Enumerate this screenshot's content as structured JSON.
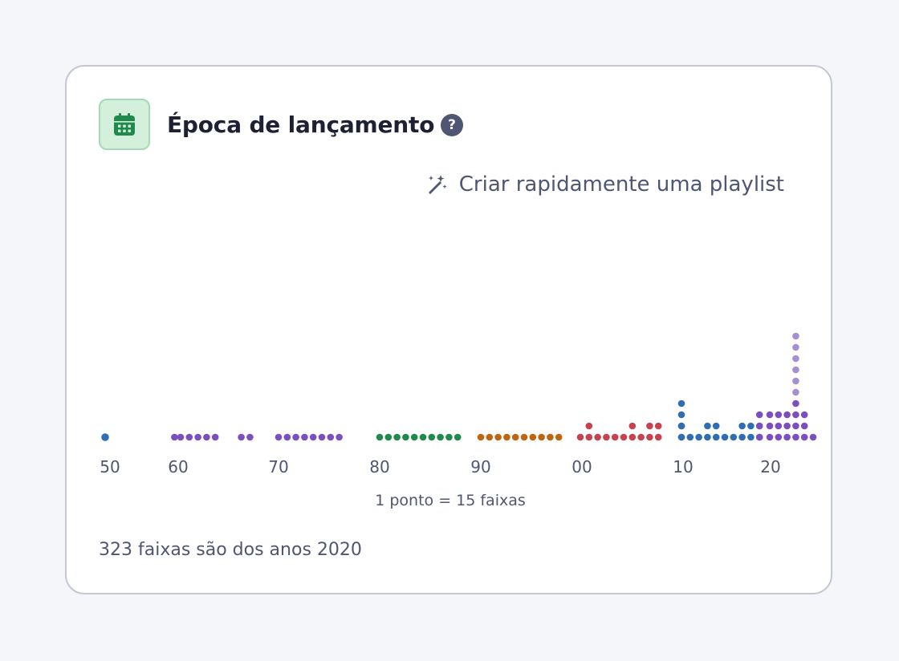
{
  "card": {
    "title": "Época de lançamento",
    "help_icon": "question-circle-icon",
    "header_icon": "calendar-icon",
    "quick_playlist_label": "Criar rapidamente uma playlist",
    "quick_playlist_icon": "magic-wand-icon",
    "legend": "1 ponto = 15 faixas",
    "summary": "323 faixas são dos anos 2020"
  },
  "colors": {
    "header_icon_bg": "#d4efdc",
    "header_icon_fg": "#1f8a4c",
    "help_icon": "#4f5673",
    "text_muted": "#4f5673"
  },
  "chart_data": {
    "type": "scatter",
    "title": "",
    "xlabel": "",
    "ylabel": "",
    "dot_value": 15,
    "x_ticks": [
      "50",
      "60",
      "70",
      "80",
      "90",
      "00",
      "10",
      "20"
    ],
    "decades": [
      {
        "label": "50",
        "color": "#2f6db5",
        "counts": {
          "1950": 1
        }
      },
      {
        "label": "60",
        "color": "#7b4fbf",
        "counts": {
          "1958": 1,
          "1960": 1,
          "1961": 1,
          "1962": 1,
          "1963": 1,
          "1964": 1
        }
      },
      {
        "label": "70",
        "color": "#7b4fbf",
        "counts": {
          "1967": 1,
          "1968": 1,
          "1970": 1,
          "1971": 1,
          "1972": 1,
          "1973": 1,
          "1974": 1,
          "1975": 1,
          "1976": 1,
          "1977": 1
        }
      },
      {
        "label": "80",
        "color": "#1f8a4c",
        "counts": {
          "1980": 1,
          "1981": 1,
          "1982": 1,
          "1983": 1,
          "1984": 1,
          "1985": 1,
          "1986": 1,
          "1987": 1,
          "1988": 1,
          "1989": 1
        }
      },
      {
        "label": "90",
        "color": "#c0650f",
        "counts": {
          "1990": 1,
          "1991": 1,
          "1992": 1,
          "1993": 1,
          "1994": 1,
          "1995": 1,
          "1996": 1,
          "1997": 1,
          "1998": 1,
          "1999": 1
        }
      },
      {
        "label": "00",
        "color": "#c8414f",
        "counts": {
          "2000": 1,
          "2001": 2,
          "2002": 1,
          "2003": 1,
          "2004": 1,
          "2005": 1,
          "2006": 2,
          "2007": 1,
          "2008": 2,
          "2009": 2,
          "2010": 2
        }
      },
      {
        "label": "10",
        "color": "#2f6db5",
        "counts": {
          "2010": 4,
          "2011": 1,
          "2012": 1,
          "2013": 2,
          "2014": 2,
          "2015": 1,
          "2016": 1,
          "2017": 2,
          "2018": 2,
          "2019": 2
        }
      },
      {
        "label": "20",
        "color": "#7b4fbf",
        "light_color": "#a48fd0",
        "counts": {
          "2019": 3,
          "2020": 3,
          "2021": 3,
          "2022": 3,
          "2023": 10,
          "2024": 3,
          "2025": 1
        }
      }
    ]
  }
}
